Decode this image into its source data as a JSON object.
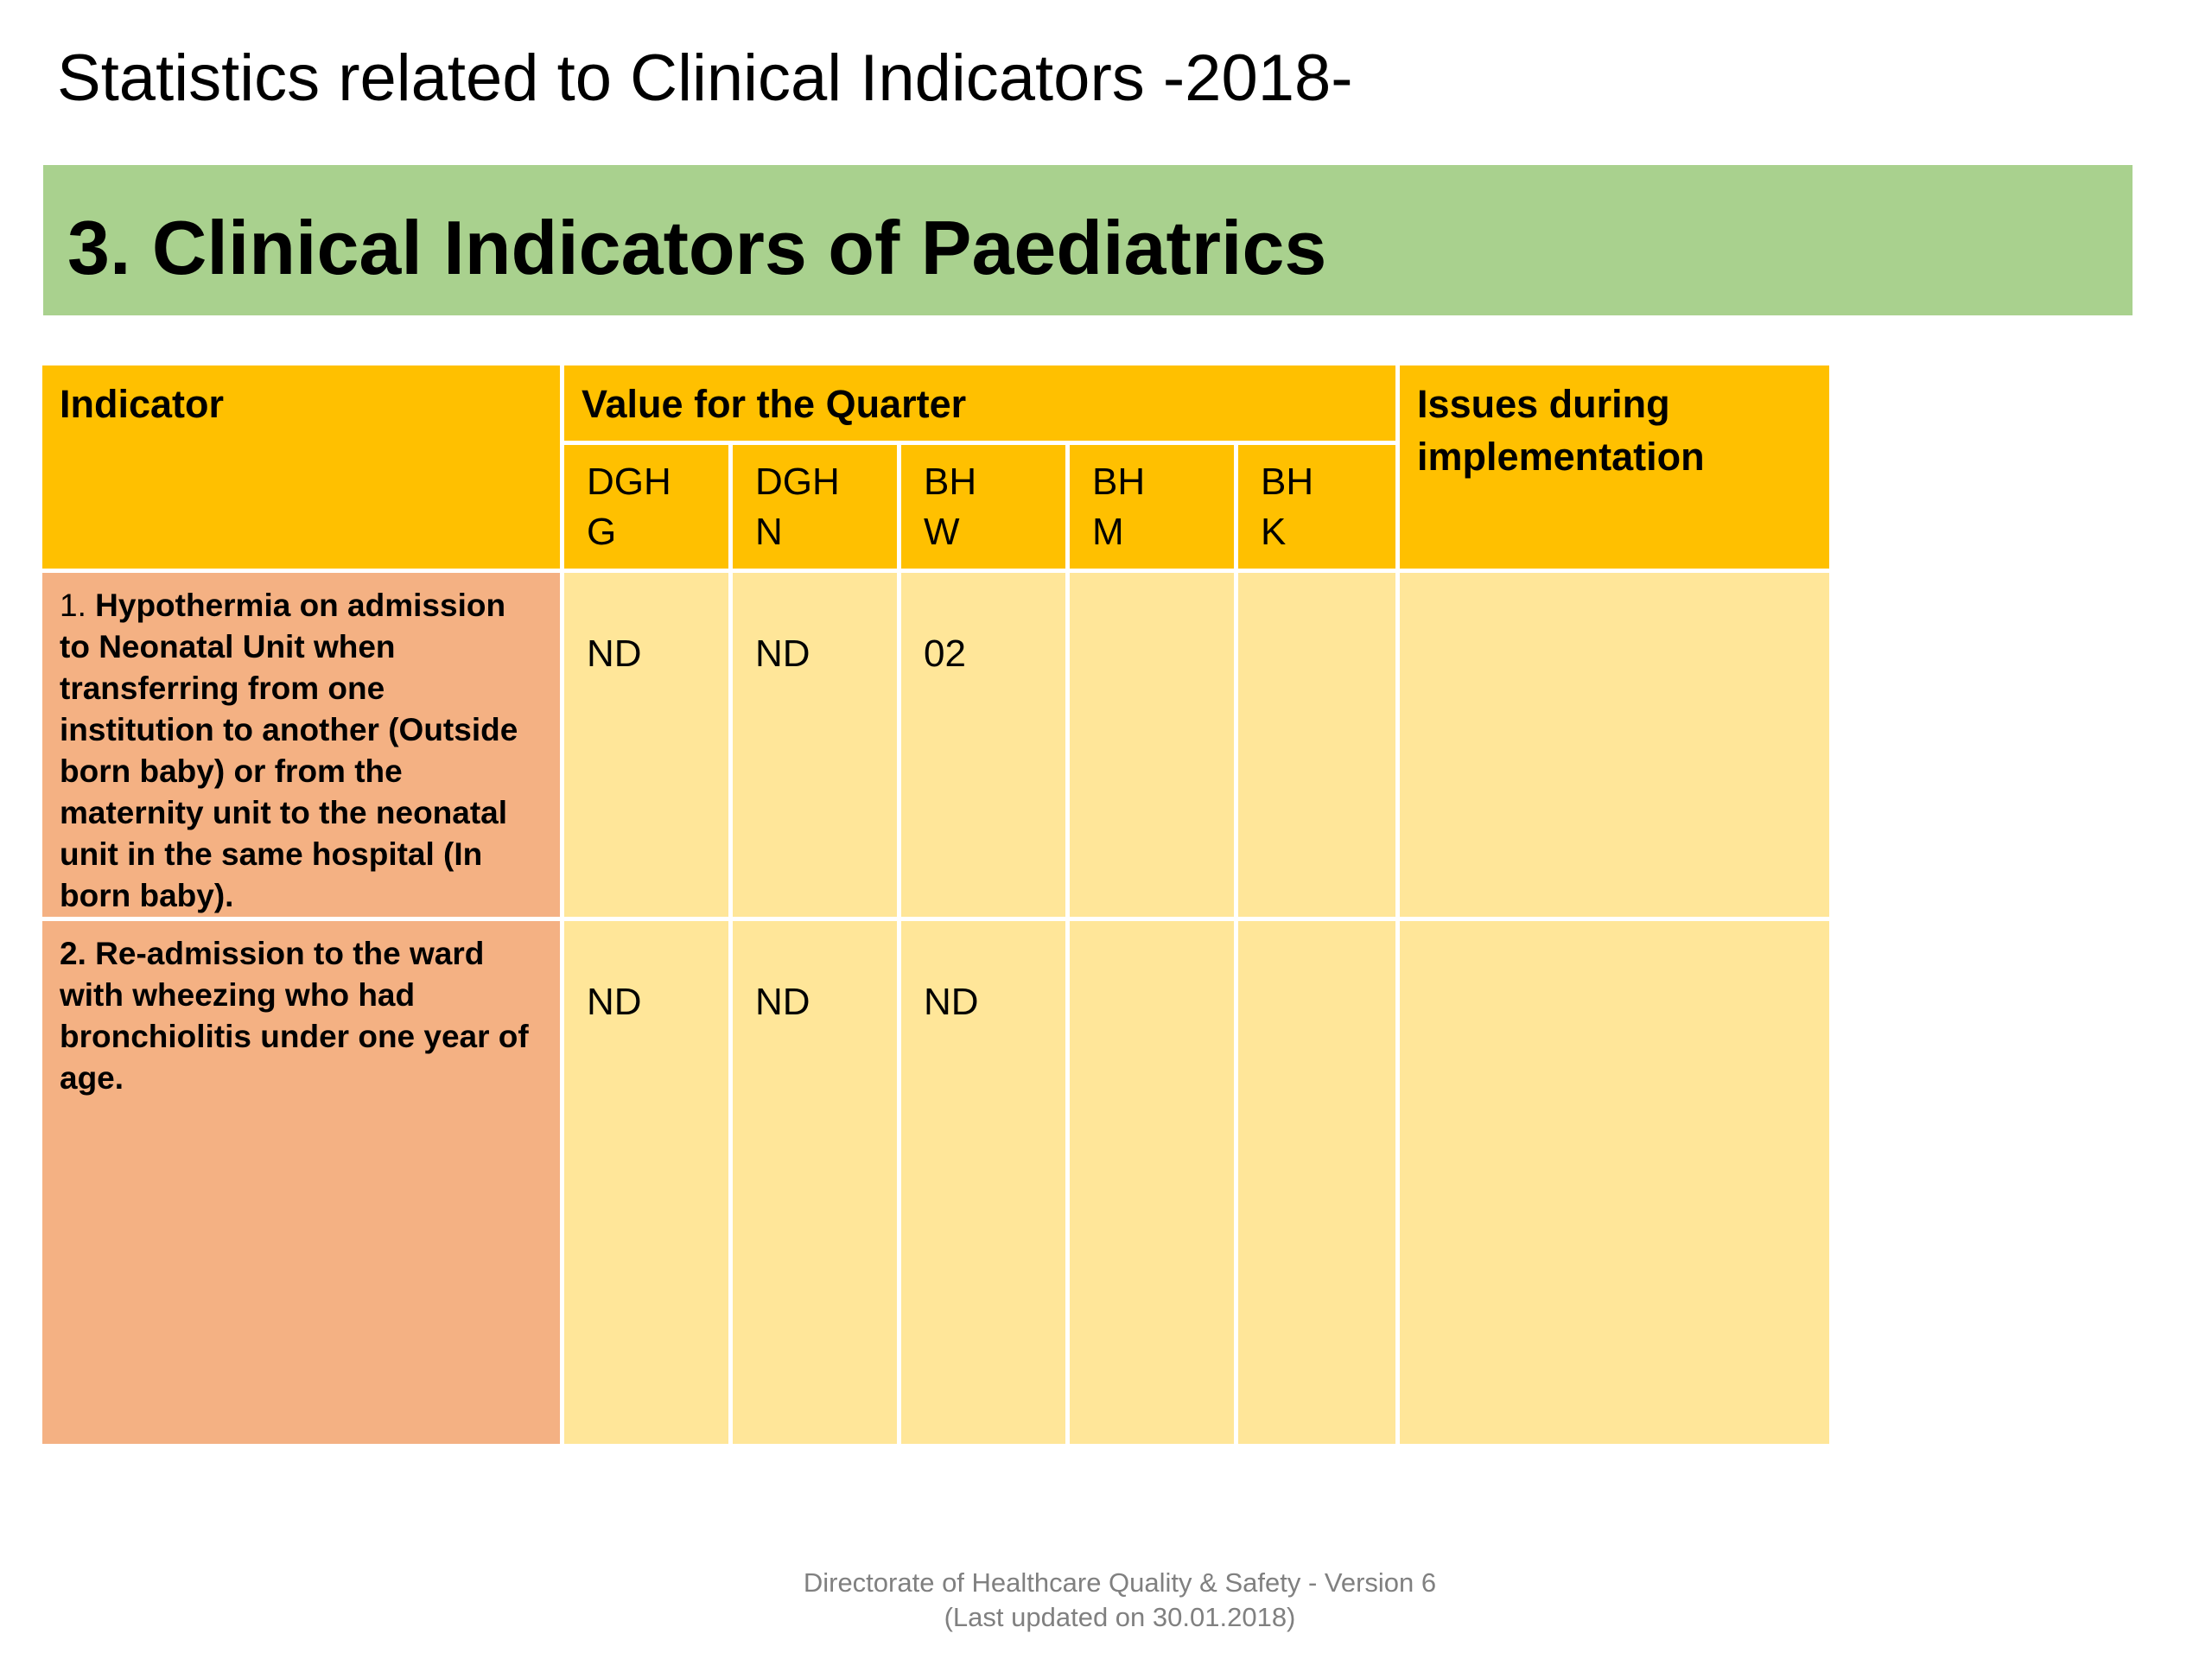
{
  "page": {
    "title": "Statistics related to Clinical Indicators -2018-"
  },
  "section": {
    "heading": "3. Clinical Indicators of Paediatrics"
  },
  "table": {
    "headers": {
      "indicator": "Indicator",
      "value_group": "Value for the Quarter",
      "issues": "Issues during implementation"
    },
    "sub_headers": [
      "DGH\nG",
      "DGH\nN",
      "BH\nW",
      "BH\nM",
      "BH\nK"
    ],
    "rows": [
      {
        "number": "1.",
        "text": "Hypothermia on admission to Neonatal Unit when transferring from one institution to another (Outside born baby) or from the maternity unit to the neonatal unit in the same hospital (In born baby).",
        "values": [
          "ND",
          "ND",
          "02",
          "",
          ""
        ],
        "issues": ""
      },
      {
        "number": "2.",
        "text": "Re-admission to the ward with wheezing who had bronchiolitis under one year of age.",
        "values": [
          "ND",
          "ND",
          "ND",
          "",
          ""
        ],
        "issues": ""
      }
    ]
  },
  "footer": {
    "line1": "Directorate of Healthcare Quality & Safety - Version 6",
    "line2": "(Last updated on 30.01.2018)"
  },
  "colors": {
    "banner": "#a9d18e",
    "header": "#ffc000",
    "indicator_cell": "#f4b183",
    "value_cell": "#ffe699",
    "footer_text": "#808080"
  }
}
